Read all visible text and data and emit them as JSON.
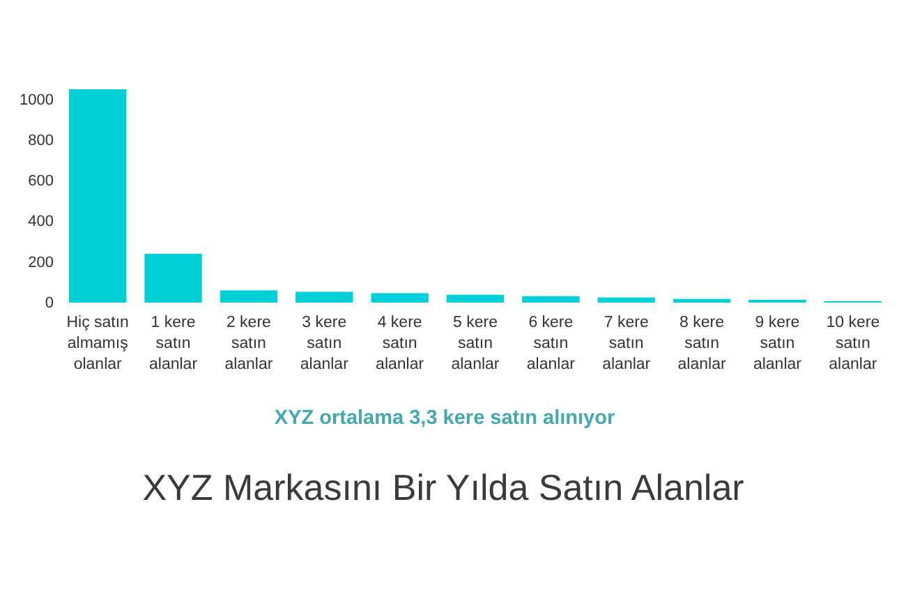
{
  "chart_data": {
    "type": "bar",
    "title": "XYZ Markasını Bir Yılda Satın Alanlar",
    "annotations": [
      "XYZ ortalama 3,3 kere satın alınıyor"
    ],
    "categories": [
      "Hiç satın almamış olanlar",
      "1 kere satın alanlar",
      "2 kere satın alanlar",
      "3 kere satın alanlar",
      "4 kere satın alanlar",
      "5 kere satın alanlar",
      "6 kere satın alanlar",
      "7 kere satın alanlar",
      "8 kere satın alanlar",
      "9 kere satın alanlar",
      "10 kere satın alanlar"
    ],
    "values": [
      1050,
      240,
      60,
      53,
      46,
      39,
      32,
      25,
      18,
      14,
      7
    ],
    "color": "#00d1d9",
    "ylim": [
      0,
      1050
    ],
    "yticks": [
      0,
      200,
      400,
      600,
      800,
      1000
    ]
  }
}
